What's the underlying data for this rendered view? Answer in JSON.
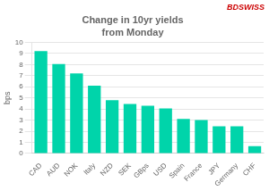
{
  "chart_data": {
    "type": "bar",
    "title": "Change in 10yr yields",
    "subtitle": "from Monday",
    "ylabel": "bps",
    "categories": [
      "CAD",
      "AUD",
      "NOK",
      "Italy",
      "NZD",
      "SEK",
      "GBps",
      "USD",
      "Spain",
      "France",
      "JPY",
      "Germany",
      "CHF"
    ],
    "values": [
      9.2,
      8.05,
      7.2,
      6.1,
      4.8,
      4.45,
      4.3,
      4.05,
      3.1,
      3.0,
      2.45,
      2.45,
      0.65
    ],
    "color": "#00D4AA",
    "ylim": [
      0,
      10
    ],
    "yticks": [
      0,
      1,
      2,
      3,
      4,
      5,
      6,
      7,
      8,
      9,
      10
    ],
    "grid": true,
    "annotations": [
      {
        "text": "BD",
        "color": "#cc0000"
      },
      {
        "text": "SWISS",
        "color": "#cc0000"
      }
    ]
  }
}
